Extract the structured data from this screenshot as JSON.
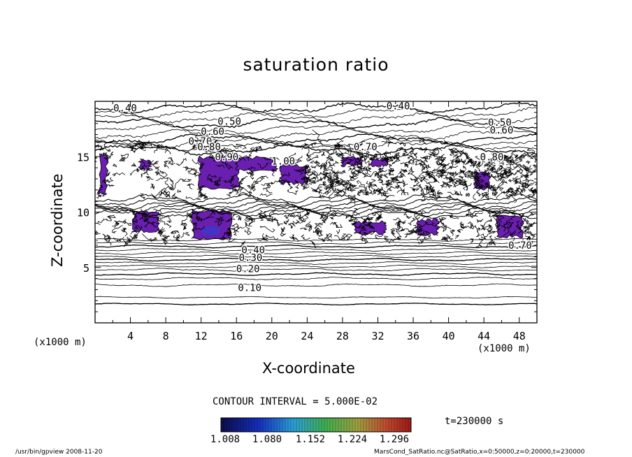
{
  "chart_data": {
    "type": "heatmap",
    "title": "saturation ratio",
    "xlabel": "X-coordinate",
    "ylabel": "Z-coordinate",
    "x_unit_left": "(x1000 m)",
    "x_unit_right": "(x1000 m)",
    "xlim": [
      0,
      50
    ],
    "ylim": [
      0,
      20
    ],
    "xticks": [
      4,
      8,
      12,
      16,
      20,
      24,
      28,
      32,
      36,
      40,
      44,
      48
    ],
    "yticks": [
      5,
      10,
      15
    ],
    "contour_interval_label": "CONTOUR INTERVAL = 5.000E-02",
    "time_label": "t=230000 s",
    "colorbar_ticks": [
      "1.008",
      "1.080",
      "1.152",
      "1.224",
      "1.296"
    ],
    "colorbar_range": [
      1.008,
      1.3
    ],
    "contour_labels": [
      {
        "text": "0.40",
        "x": 3.4,
        "y": 19.4
      },
      {
        "text": "0.40",
        "x": 34.3,
        "y": 19.6
      },
      {
        "text": "0.50",
        "x": 15.2,
        "y": 18.2
      },
      {
        "text": "0.50",
        "x": 45.8,
        "y": 18.1
      },
      {
        "text": "0.60",
        "x": 13.3,
        "y": 17.3
      },
      {
        "text": "0.60",
        "x": 46.0,
        "y": 17.4
      },
      {
        "text": "0.70",
        "x": 11.9,
        "y": 16.4
      },
      {
        "text": "0.70",
        "x": 30.6,
        "y": 15.9
      },
      {
        "text": "0.80",
        "x": 12.9,
        "y": 15.9
      },
      {
        "text": "0.80",
        "x": 44.9,
        "y": 15.0
      },
      {
        "text": "0.90",
        "x": 14.9,
        "y": 15.0
      },
      {
        "text": "1.00",
        "x": 21.3,
        "y": 14.6
      },
      {
        "text": "0.70",
        "x": 48.1,
        "y": 7.0
      },
      {
        "text": "0.40",
        "x": 17.9,
        "y": 6.6
      },
      {
        "text": "0.30",
        "x": 17.6,
        "y": 5.9
      },
      {
        "text": "0.20",
        "x": 17.3,
        "y": 4.9
      },
      {
        "text": "0.10",
        "x": 17.5,
        "y": 3.2
      }
    ],
    "supersaturated_regions": [
      {
        "x": [
          11.8,
          16.2
        ],
        "z": [
          12.2,
          14.9
        ]
      },
      {
        "x": [
          16.0,
          20.5
        ],
        "z": [
          13.8,
          14.9
        ]
      },
      {
        "x": [
          21.0,
          24.0
        ],
        "z": [
          12.6,
          14.2
        ]
      },
      {
        "x": [
          11.0,
          15.3
        ],
        "z": [
          7.6,
          10.1
        ]
      },
      {
        "x": [
          4.4,
          7.2
        ],
        "z": [
          8.3,
          10.0
        ]
      },
      {
        "x": [
          0.5,
          1.3
        ],
        "z": [
          11.6,
          15.2
        ]
      },
      {
        "x": [
          45.5,
          48.3
        ],
        "z": [
          7.8,
          9.7
        ]
      },
      {
        "x": [
          36.5,
          38.8
        ],
        "z": [
          8.0,
          9.3
        ]
      },
      {
        "x": [
          29.5,
          32.8
        ],
        "z": [
          8.1,
          9.1
        ]
      },
      {
        "x": [
          28.0,
          30.2
        ],
        "z": [
          14.2,
          15.0
        ]
      },
      {
        "x": [
          31.2,
          33.0
        ],
        "z": [
          14.2,
          14.8
        ]
      },
      {
        "x": [
          43.0,
          44.6
        ],
        "z": [
          12.1,
          13.6
        ]
      },
      {
        "x": [
          5.1,
          6.2
        ],
        "z": [
          13.9,
          14.7
        ]
      }
    ]
  },
  "footer": {
    "left": "/usr/bin/gpview   2008-11-20",
    "right": "MarsCond_SatRatio.nc@SatRatio,x=0:50000,z=0:20000,t=230000"
  }
}
